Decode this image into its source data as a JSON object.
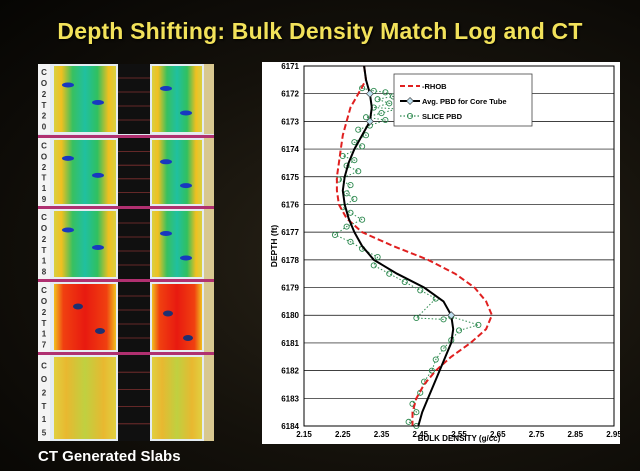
{
  "slide": {
    "title": "Depth Shifting: Bulk Density Match Log and CT",
    "slabs_caption": "CT Generated Slabs"
  },
  "slabs": [
    {
      "label": "C02T20",
      "chars": [
        "C",
        "O",
        "2",
        "T",
        "2",
        "0"
      ]
    },
    {
      "label": "C02T19",
      "chars": [
        "C",
        "O",
        "2",
        "T",
        "1",
        "9"
      ]
    },
    {
      "label": "C02T18",
      "chars": [
        "C",
        "O",
        "2",
        "T",
        "1",
        "8"
      ]
    },
    {
      "label": "C02T17",
      "chars": [
        "C",
        "O",
        "2",
        "T",
        "1",
        "7"
      ]
    },
    {
      "label": "C02T15",
      "chars": [
        "C",
        "O",
        "2",
        "T",
        "1",
        "5"
      ]
    }
  ],
  "colors": {
    "rhob": "#e02020",
    "avg": "#000000",
    "slice": "#2e8a50",
    "title": "#f2e25a"
  },
  "chart_data": {
    "type": "line",
    "title": "",
    "xlabel": "BULK DENSITY (g/cc)",
    "ylabel": "DEPTH (ft)",
    "xlim": [
      2.15,
      2.95
    ],
    "ylim": [
      6171,
      6184
    ],
    "y_inverted": true,
    "grid": true,
    "legend_position": "top-right",
    "xticks": [
      "2.15",
      "2.25",
      "2.35",
      "2.45",
      "2.55",
      "2.65",
      "2.75",
      "2.85",
      "2.95"
    ],
    "yticks": [
      "6171",
      "6172",
      "6173",
      "6174",
      "6175",
      "6176",
      "6177",
      "6178",
      "6179",
      "6180",
      "6181",
      "6182",
      "6183",
      "6184"
    ],
    "series": [
      {
        "name": "RHOB",
        "legend": "-RHOB",
        "style": "dashed",
        "points": [
          [
            2.305,
            6171.0
          ],
          [
            2.31,
            6171.5
          ],
          [
            2.29,
            6172.0
          ],
          [
            2.27,
            6172.5
          ],
          [
            2.26,
            6173.0
          ],
          [
            2.25,
            6173.5
          ],
          [
            2.245,
            6174.0
          ],
          [
            2.24,
            6174.5
          ],
          [
            2.235,
            6175.0
          ],
          [
            2.235,
            6175.5
          ],
          [
            2.24,
            6176.0
          ],
          [
            2.26,
            6176.5
          ],
          [
            2.3,
            6177.0
          ],
          [
            2.38,
            6177.5
          ],
          [
            2.47,
            6178.0
          ],
          [
            2.54,
            6178.5
          ],
          [
            2.59,
            6179.0
          ],
          [
            2.62,
            6179.5
          ],
          [
            2.635,
            6180.0
          ],
          [
            2.62,
            6180.5
          ],
          [
            2.58,
            6181.0
          ],
          [
            2.53,
            6181.5
          ],
          [
            2.49,
            6182.0
          ],
          [
            2.46,
            6182.5
          ],
          [
            2.44,
            6183.0
          ],
          [
            2.43,
            6183.5
          ],
          [
            2.43,
            6184.0
          ]
        ]
      },
      {
        "name": "Avg. PBD for Core Tube",
        "legend": "Avg. PBD for Core Tube",
        "style": "solid-markers",
        "points": [
          [
            2.305,
            6171.0
          ],
          [
            2.31,
            6171.5
          ],
          [
            2.32,
            6172.0
          ],
          [
            2.325,
            6172.5
          ],
          [
            2.32,
            6173.0
          ],
          [
            2.3,
            6173.5
          ],
          [
            2.28,
            6174.0
          ],
          [
            2.265,
            6174.5
          ],
          [
            2.255,
            6175.0
          ],
          [
            2.25,
            6175.5
          ],
          [
            2.255,
            6176.0
          ],
          [
            2.265,
            6176.5
          ],
          [
            2.28,
            6177.0
          ],
          [
            2.3,
            6177.5
          ],
          [
            2.33,
            6178.0
          ],
          [
            2.39,
            6178.5
          ],
          [
            2.46,
            6179.0
          ],
          [
            2.51,
            6179.5
          ],
          [
            2.53,
            6180.0
          ],
          [
            2.535,
            6180.5
          ],
          [
            2.53,
            6181.0
          ],
          [
            2.515,
            6181.5
          ],
          [
            2.5,
            6182.0
          ],
          [
            2.485,
            6182.5
          ],
          [
            2.47,
            6183.0
          ],
          [
            2.455,
            6183.5
          ],
          [
            2.445,
            6184.0
          ]
        ],
        "markers": [
          [
            2.32,
            6172.0
          ],
          [
            2.32,
            6173.0
          ],
          [
            2.53,
            6180.0
          ]
        ]
      },
      {
        "name": "SLICE PBD",
        "legend": "SLICE PBD",
        "style": "dotted-circles",
        "points": [
          [
            2.3,
            6171.8
          ],
          [
            2.33,
            6171.9
          ],
          [
            2.36,
            6171.95
          ],
          [
            2.38,
            6172.1
          ],
          [
            2.34,
            6172.2
          ],
          [
            2.37,
            6172.35
          ],
          [
            2.33,
            6172.5
          ],
          [
            2.39,
            6172.55
          ],
          [
            2.35,
            6172.7
          ],
          [
            2.31,
            6172.85
          ],
          [
            2.36,
            6172.95
          ],
          [
            2.32,
            6173.15
          ],
          [
            2.29,
            6173.3
          ],
          [
            2.31,
            6173.5
          ],
          [
            2.28,
            6173.75
          ],
          [
            2.3,
            6173.9
          ],
          [
            2.25,
            6174.25
          ],
          [
            2.28,
            6174.4
          ],
          [
            2.26,
            6174.6
          ],
          [
            2.29,
            6174.8
          ],
          [
            2.24,
            6175.1
          ],
          [
            2.27,
            6175.3
          ],
          [
            2.26,
            6175.6
          ],
          [
            2.28,
            6175.8
          ],
          [
            2.25,
            6176.1
          ],
          [
            2.27,
            6176.3
          ],
          [
            2.3,
            6176.55
          ],
          [
            2.26,
            6176.8
          ],
          [
            2.23,
            6177.1
          ],
          [
            2.27,
            6177.35
          ],
          [
            2.3,
            6177.6
          ],
          [
            2.34,
            6177.9
          ],
          [
            2.33,
            6178.2
          ],
          [
            2.37,
            6178.5
          ],
          [
            2.41,
            6178.8
          ],
          [
            2.45,
            6179.1
          ],
          [
            2.49,
            6179.4
          ],
          [
            2.44,
            6180.1
          ],
          [
            2.51,
            6180.15
          ],
          [
            2.53,
            6180.05
          ],
          [
            2.6,
            6180.35
          ],
          [
            2.55,
            6180.55
          ],
          [
            2.53,
            6180.9
          ],
          [
            2.51,
            6181.2
          ],
          [
            2.49,
            6181.6
          ],
          [
            2.48,
            6182.0
          ],
          [
            2.46,
            6182.4
          ],
          [
            2.45,
            6182.8
          ],
          [
            2.43,
            6183.2
          ],
          [
            2.44,
            6183.5
          ],
          [
            2.42,
            6183.85
          ],
          [
            2.44,
            6184.0
          ]
        ]
      }
    ]
  }
}
